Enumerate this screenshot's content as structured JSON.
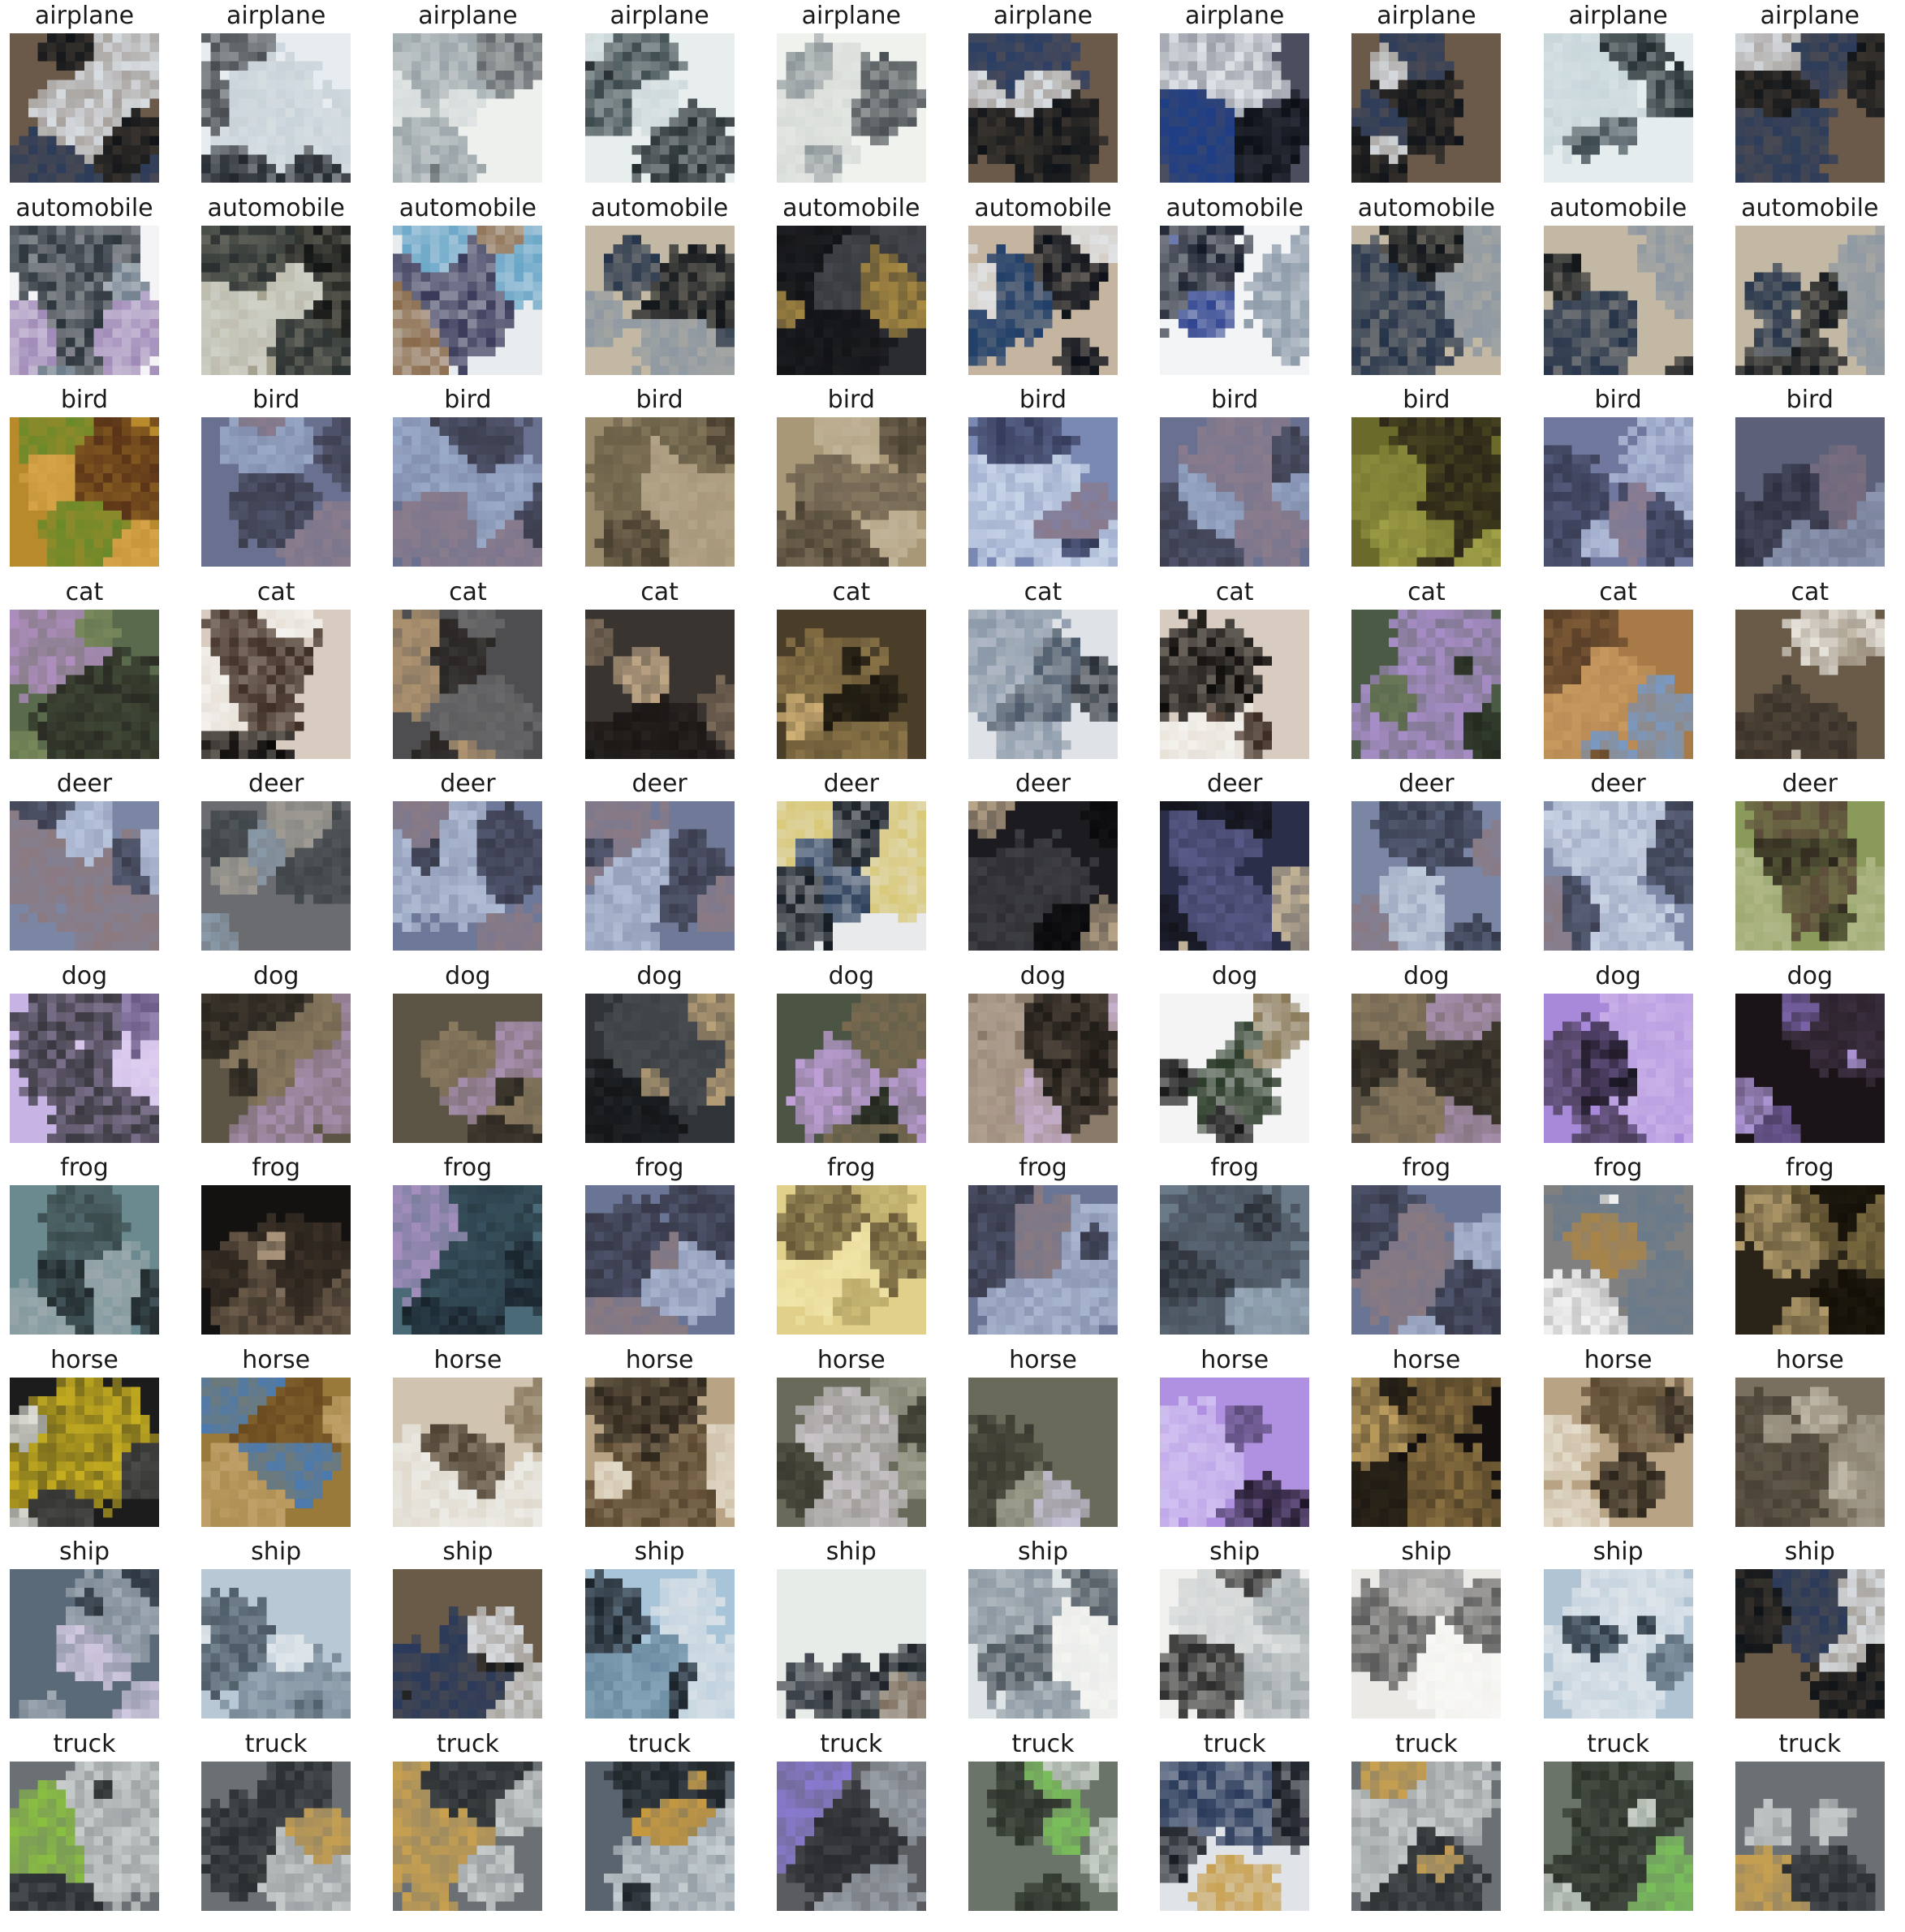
{
  "figure": {
    "rows": [
      {
        "labels": [
          "airplane",
          "airplane",
          "airplane",
          "airplane",
          "airplane",
          "airplane",
          "airplane",
          "airplane",
          "airplane",
          "airplane"
        ],
        "palettes": [
          [
            "#6b5a4a",
            "#2c3c5a",
            "#d8dde2",
            "#101418"
          ],
          [
            "#e6ecef",
            "#4a4e52",
            "#c8d2d8",
            "#20262c"
          ],
          [
            "#eef0ee",
            "#9aa4a8",
            "#d6dcdc",
            "#5c6266"
          ],
          [
            "#e8eeee",
            "#3c4a4e",
            "#cdd8da",
            "#1c2428"
          ],
          [
            "#f0f2ee",
            "#8e979a",
            "#d8dcd8",
            "#4a5054"
          ],
          [
            "#6b5a4a",
            "#2a3e66",
            "#d8dde2",
            "#101418"
          ],
          [
            "#4b4e5e",
            "#1e3e86",
            "#e0e4e8",
            "#0c1016"
          ],
          [
            "#6b5a4a",
            "#2c3c5a",
            "#d8dde2",
            "#101418"
          ],
          [
            "#e4ecee",
            "#3e4c52",
            "#c8d6da",
            "#1c262a"
          ],
          [
            "#6b5a4a",
            "#2c3c5a",
            "#d8dde2",
            "#101418"
          ]
        ]
      },
      {
        "labels": [
          "automobile",
          "automobile",
          "automobile",
          "automobile",
          "automobile",
          "automobile",
          "automobile",
          "automobile",
          "automobile",
          "automobile"
        ],
        "palettes": [
          [
            "#f4f4f6",
            "#6a7a88",
            "#a08ab8",
            "#2c343c"
          ],
          [
            "#a6a290",
            "#2a3030",
            "#cfd0c6",
            "#121414"
          ],
          [
            "#e8ecef",
            "#6aa6c8",
            "#8a6c4c",
            "#3a3a5a"
          ],
          [
            "#c2b8a4",
            "#26344a",
            "#8e98a2",
            "#101418"
          ],
          [
            "#2a2c30",
            "#44464c",
            "#a88a42",
            "#121316"
          ],
          [
            "#c4b4a0",
            "#1a3a66",
            "#e0e2e4",
            "#0c1018"
          ],
          [
            "#f2f4f6",
            "#2a3e8c",
            "#8c9aa8",
            "#141a28"
          ],
          [
            "#c2b8a4",
            "#26344a",
            "#8e98a2",
            "#101418"
          ],
          [
            "#c2b8a4",
            "#26344a",
            "#8e98a2",
            "#101418"
          ],
          [
            "#c2b8a4",
            "#26344a",
            "#8e98a2",
            "#101418"
          ]
        ]
      },
      {
        "labels": [
          "bird",
          "bird",
          "bird",
          "bird",
          "bird",
          "bird",
          "bird",
          "bird",
          "bird",
          "bird"
        ],
        "palettes": [
          [
            "#b88a2c",
            "#6a8a2a",
            "#d8a44a",
            "#5a3418"
          ],
          [
            "#6a7090",
            "#9aaac8",
            "#8a7c8c",
            "#3c3e4e"
          ],
          [
            "#6a7090",
            "#9aaac8",
            "#8a7c8c",
            "#3c3e4e"
          ],
          [
            "#9a8a6c",
            "#6a6048",
            "#b4a488",
            "#4a4030"
          ],
          [
            "#a89878",
            "#6e6250",
            "#c2b498",
            "#4c4234"
          ],
          [
            "#7a88b4",
            "#c8d4e8",
            "#8a7a8c",
            "#343a58"
          ],
          [
            "#6a7090",
            "#9aaac8",
            "#8a7c8c",
            "#3c3e4e"
          ],
          [
            "#6a6a2a",
            "#a0a048",
            "#2a2418",
            "#8a8a3c"
          ],
          [
            "#7078a0",
            "#b0bcd8",
            "#8c7c8e",
            "#3a3e56"
          ],
          [
            "#5c6078",
            "#8c96b0",
            "#7a6e80",
            "#2e3040"
          ]
        ]
      },
      {
        "labels": [
          "cat",
          "cat",
          "cat",
          "cat",
          "cat",
          "cat",
          "cat",
          "cat",
          "cat",
          "cat"
        ],
        "palettes": [
          [
            "#5a6a4c",
            "#b08ec0",
            "#7a8a5c",
            "#2a2c24"
          ],
          [
            "#d8ccc0",
            "#3a2a20",
            "#f4f2ee",
            "#0c0a08"
          ],
          [
            "#4e4e50",
            "#2a2624",
            "#b09470",
            "#6a6a6c"
          ],
          [
            "#3a3430",
            "#c2aa88",
            "#1a1614",
            "#7a6a58"
          ],
          [
            "#4a3e28",
            "#8a7448",
            "#d4b478",
            "#1c1810"
          ],
          [
            "#dfe2e6",
            "#4a5868",
            "#8a98a8",
            "#2a3038"
          ],
          [
            "#d8ccc0",
            "#3a2a20",
            "#f4f2ee",
            "#0c0a08"
          ],
          [
            "#4a5a44",
            "#a88ec8",
            "#6c7a58",
            "#242a20"
          ],
          [
            "#a87a48",
            "#7a98c0",
            "#c89a60",
            "#5a4028"
          ],
          [
            "#6a5a48",
            "#c8c0b0",
            "#3a322a",
            "#e8e4dc"
          ]
        ]
      },
      {
        "labels": [
          "deer",
          "deer",
          "deer",
          "deer",
          "deer",
          "deer",
          "deer",
          "deer",
          "deer",
          "deer"
        ],
        "palettes": [
          [
            "#7a86a4",
            "#b8c4dc",
            "#8c7a80",
            "#3a3c4c"
          ],
          [
            "#6a6c70",
            "#8a9aa8",
            "#3e4448",
            "#a09c94"
          ],
          [
            "#6e7898",
            "#b0bcd4",
            "#8a7a84",
            "#383a4a"
          ],
          [
            "#707a98",
            "#b2bed6",
            "#8a7a84",
            "#3a3c4c"
          ],
          [
            "#e8eaec",
            "#2a3e5a",
            "#d8c878",
            "#121820"
          ],
          [
            "#1c1c20",
            "#3e3e44",
            "#b8a488",
            "#0a0a0c"
          ],
          [
            "#2a2e48",
            "#5a5a88",
            "#c8b89a",
            "#14141c"
          ],
          [
            "#7a86a4",
            "#c0ccdc",
            "#8a7a84",
            "#363a4c"
          ],
          [
            "#7e8aa8",
            "#c8d2e4",
            "#8a7a84",
            "#3a3e50"
          ],
          [
            "#8a9a5a",
            "#5a4a38",
            "#b0b888",
            "#2c241c"
          ]
        ]
      },
      {
        "labels": [
          "dog",
          "dog",
          "dog",
          "dog",
          "dog",
          "dog",
          "dog",
          "dog",
          "dog",
          "dog"
        ],
        "palettes": [
          [
            "#c8b4e4",
            "#3a3840",
            "#e0d0f0",
            "#6a5a84"
          ],
          [
            "#5c5444",
            "#8a7a60",
            "#a890b0",
            "#2a2620"
          ],
          [
            "#5c5444",
            "#8a7a60",
            "#a890b0",
            "#2a2620"
          ],
          [
            "#303438",
            "#b8a078",
            "#484c50",
            "#141618"
          ],
          [
            "#4c5444",
            "#c0a0d8",
            "#7a6a50",
            "#22261e"
          ],
          [
            "#8a7a6a",
            "#c8b0d0",
            "#1e1a16",
            "#b0a090"
          ],
          [
            "#f4f4f4",
            "#141414",
            "#8a7a5a",
            "#2c3c2a"
          ],
          [
            "#5c5444",
            "#8a7a60",
            "#a890b0",
            "#2a2620"
          ],
          [
            "#a888d8",
            "#4a3e5a",
            "#c8b0e8",
            "#1a1622"
          ],
          [
            "#1a1418",
            "#7a64a8",
            "#3c3040",
            "#b098d8"
          ]
        ]
      },
      {
        "labels": [
          "frog",
          "frog",
          "frog",
          "frog",
          "frog",
          "frog",
          "frog",
          "frog",
          "frog",
          "frog"
        ],
        "palettes": [
          [
            "#6a8a90",
            "#3a4a4c",
            "#9aa8ac",
            "#20282a"
          ],
          [
            "#141210",
            "#b09a80",
            "#3c3228",
            "#6a5a48"
          ],
          [
            "#4a6a78",
            "#2a3e48",
            "#a890c0",
            "#18222a"
          ],
          [
            "#6a7494",
            "#aab6d0",
            "#8a7a80",
            "#383a4a"
          ],
          [
            "#e0d08a",
            "#b8a868",
            "#f0e4a8",
            "#6a5a38"
          ],
          [
            "#6a7494",
            "#aab6d0",
            "#8a7a80",
            "#383a4a"
          ],
          [
            "#6a7a88",
            "#98a8b8",
            "#4a5460",
            "#2c3038"
          ],
          [
            "#6a7494",
            "#aab6d0",
            "#8a7a80",
            "#383a4a"
          ],
          [
            "#808080",
            "#6a7a8a",
            "#a88448",
            "#f4f4f4"
          ],
          [
            "#2a2418",
            "#7a6a40",
            "#b09a6a",
            "#141008"
          ]
        ]
      },
      {
        "labels": [
          "horse",
          "horse",
          "horse",
          "horse",
          "horse",
          "horse",
          "horse",
          "horse",
          "horse",
          "horse"
        ],
        "palettes": [
          [
            "#1c1c1c",
            "#c8b020",
            "#4a4a48",
            "#e0e0d8"
          ],
          [
            "#9a7a3a",
            "#4a7ab0",
            "#c0a068",
            "#6a4a20"
          ],
          [
            "#d0c4b0",
            "#4a3e30",
            "#ecebe6",
            "#8a7a60"
          ],
          [
            "#b8a484",
            "#5a4830",
            "#e4dccc",
            "#2c241a"
          ],
          [
            "#6a6a5a",
            "#c8c4c8",
            "#3a3a30",
            "#a0a090"
          ],
          [
            "#6a6a5a",
            "#c8c4d8",
            "#3a3a30",
            "#a0a090"
          ],
          [
            "#b090e0",
            "#5a4a78",
            "#d0c0f0",
            "#20182a"
          ],
          [
            "#141010",
            "#8a7040",
            "#c0a060",
            "#2a2418"
          ],
          [
            "#b8a484",
            "#5a4830",
            "#e4dccc",
            "#2c241a"
          ],
          [
            "#7a7060",
            "#c0b8a8",
            "#4a4236",
            "#a09888"
          ]
        ]
      },
      {
        "labels": [
          "ship",
          "ship",
          "ship",
          "ship",
          "ship",
          "ship",
          "ship",
          "ship",
          "ship",
          "ship"
        ],
        "palettes": [
          [
            "#5a6a78",
            "#d0c8e0",
            "#2e3640",
            "#a0aab4"
          ],
          [
            "#b8c8d4",
            "#e0e6ea",
            "#7a8a98",
            "#4a5864"
          ],
          [
            "#6a5a48",
            "#2a3a5a",
            "#d8dce0",
            "#101418"
          ],
          [
            "#a8c4d8",
            "#1c242c",
            "#d8e0e6",
            "#6a8aa0"
          ],
          [
            "#e8ece8",
            "#3a4048",
            "#7a6a5a",
            "#1c2228"
          ],
          [
            "#dfe4e6",
            "#8a96a0",
            "#f4f4f0",
            "#4a545c"
          ],
          [
            "#f0f0ee",
            "#2a2a2a",
            "#a0a8ac",
            "#d0d4d4"
          ],
          [
            "#eceae6",
            "#a0a0a0",
            "#f8f8f6",
            "#5a5a5a"
          ],
          [
            "#b0c4d4",
            "#dde4ea",
            "#5a6a78",
            "#2e3a46"
          ],
          [
            "#6a5a48",
            "#2a3a5a",
            "#d8dce0",
            "#101418"
          ]
        ]
      },
      {
        "labels": [
          "truck",
          "truck",
          "truck",
          "truck",
          "truck",
          "truck",
          "truck",
          "truck",
          "truck",
          "truck"
        ],
        "palettes": [
          [
            "#6a7074",
            "#c8cccc",
            "#2a2e30",
            "#8ac040"
          ],
          [
            "#6a7074",
            "#c8cccc",
            "#2a2e30",
            "#c8a050"
          ],
          [
            "#6a7074",
            "#c8cccc",
            "#2a2e30",
            "#c8a050"
          ],
          [
            "#5a646e",
            "#c8d0d4",
            "#1e2428",
            "#c89a40"
          ],
          [
            "#5a5c60",
            "#9aa0a8",
            "#2a2c30",
            "#8a7ad0"
          ],
          [
            "#6a7468",
            "#c8d0c8",
            "#2a3028",
            "#7ac05a"
          ],
          [
            "#e0e4e8",
            "#2a3a5a",
            "#c8a050",
            "#141820"
          ],
          [
            "#6a7074",
            "#c8cccc",
            "#2a2e30",
            "#c8a050"
          ],
          [
            "#6a7468",
            "#c8d0c8",
            "#2a3028",
            "#7ac05a"
          ],
          [
            "#6a7074",
            "#c8cccc",
            "#2a2e30",
            "#c8a050"
          ]
        ]
      }
    ]
  }
}
